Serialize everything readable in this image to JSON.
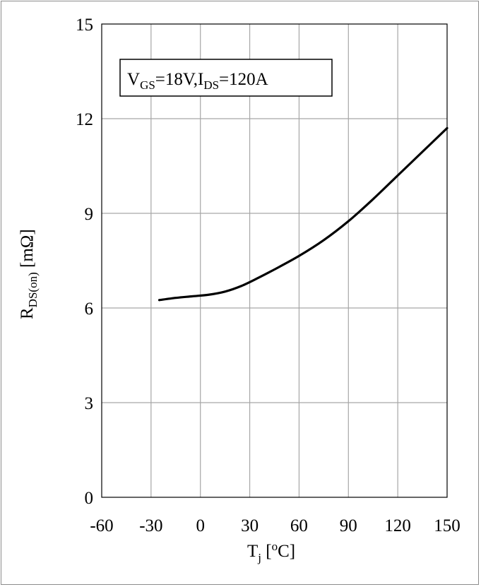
{
  "chart_data": {
    "type": "line",
    "xlabel_main": "T",
    "xlabel_sub": "j",
    "xlabel_tail": " [",
    "xlabel_sup": "o",
    "xlabel_end": "C]",
    "ylabel_main": "R",
    "ylabel_sub": "DS(on)",
    "ylabel_tail": " [mΩ]",
    "xlim": [
      -60,
      150
    ],
    "ylim": [
      0,
      15
    ],
    "x_ticks": [
      -60,
      -30,
      0,
      30,
      60,
      90,
      120,
      150
    ],
    "y_ticks": [
      0,
      3,
      6,
      9,
      12,
      15
    ],
    "grid": true,
    "annotation": {
      "v": "V",
      "v_sub": "GS",
      "v_val": "=18V,I",
      "i_sub": "DS",
      "i_val": "=120A"
    },
    "series": [
      {
        "x": [
          -25,
          -15,
          -5,
          5,
          15,
          25,
          35,
          45,
          60,
          75,
          90,
          105,
          120,
          135,
          150
        ],
        "y": [
          6.25,
          6.32,
          6.37,
          6.42,
          6.52,
          6.7,
          6.95,
          7.22,
          7.65,
          8.15,
          8.75,
          9.45,
          10.2,
          10.95,
          11.7
        ]
      }
    ],
    "colors": {
      "line": "#000000",
      "grid": "#a6a6a6",
      "axis": "#000000"
    }
  }
}
